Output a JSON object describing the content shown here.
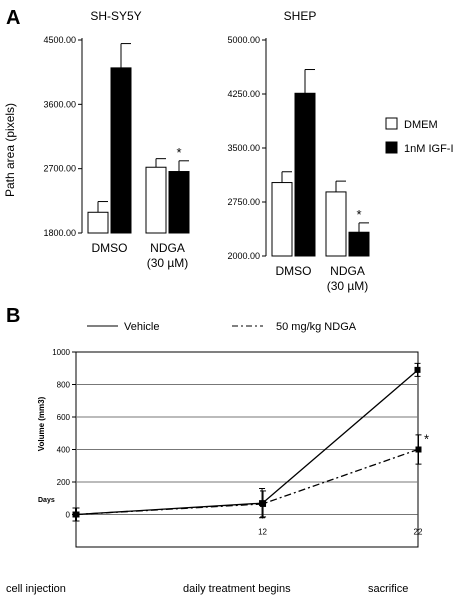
{
  "panel_a": {
    "letter": "A",
    "ylabel": "Path area (pixels)",
    "legend": [
      "DMEM",
      "1nM IGF-I"
    ]
  },
  "panel_b": {
    "letter": "B",
    "legend": [
      "Vehicle",
      "50 mg/kg NDGA"
    ],
    "ylabel": "Volume (mm3)",
    "days_label": "Days",
    "timeline": [
      "cell injection",
      "daily treatment begins",
      "sacrifice"
    ]
  },
  "colors": {
    "dmem": "#ffffff",
    "igf": "#000000",
    "stroke": "#000000"
  },
  "chart_data": [
    {
      "type": "bar",
      "title": "SH-SY5Y",
      "ylabel": "Path area (pixels)",
      "categories": [
        "DMSO",
        "NDGA (30 µM)"
      ],
      "category_labels": [
        [
          "DMSO"
        ],
        [
          "NDGA",
          "(30 µM)"
        ]
      ],
      "ylim": [
        1800,
        4500
      ],
      "yticks": [
        1800,
        2700,
        3600,
        4500
      ],
      "ytick_labels": [
        "1800.00",
        "2700.00",
        "3600.00",
        "4500.00"
      ],
      "series": [
        {
          "name": "DMEM",
          "values": [
            2090,
            2720
          ],
          "errors": [
            150,
            120
          ]
        },
        {
          "name": "1nM IGF-I",
          "values": [
            4110,
            2660
          ],
          "errors": [
            340,
            150
          ]
        }
      ],
      "annotations": [
        {
          "text": "*",
          "category": 1,
          "series": 1
        }
      ]
    },
    {
      "type": "bar",
      "title": "SHEP",
      "categories": [
        "DMSO",
        "NDGA (30 µM)"
      ],
      "category_labels": [
        [
          "DMSO"
        ],
        [
          "NDGA",
          "(30 µM)"
        ]
      ],
      "ylim": [
        2000,
        5000
      ],
      "yticks": [
        2000,
        2750,
        3500,
        4250,
        5000
      ],
      "ytick_labels": [
        "2000.00",
        "2750.00",
        "3500.00",
        "4250.00",
        "5000.00"
      ],
      "series": [
        {
          "name": "DMEM",
          "values": [
            3020,
            2890
          ],
          "errors": [
            150,
            150
          ]
        },
        {
          "name": "1nM IGF-I",
          "values": [
            4260,
            2330
          ],
          "errors": [
            330,
            130
          ]
        }
      ],
      "annotations": [
        {
          "text": "*",
          "category": 1,
          "series": 1
        }
      ]
    },
    {
      "type": "line",
      "ylabel": "Volume (mm3)",
      "x": [
        0,
        12,
        22
      ],
      "xticks": [
        12,
        22
      ],
      "xlim": [
        0,
        22
      ],
      "ylim": [
        -200,
        1000
      ],
      "yticks": [
        0,
        200,
        400,
        600,
        800,
        1000
      ],
      "ytick_labels": [
        "0",
        "200",
        "400",
        "600",
        "800",
        "1000"
      ],
      "grid": true,
      "series": [
        {
          "name": "Vehicle",
          "values": [
            0,
            70,
            890
          ],
          "errors": [
            40,
            90,
            40
          ],
          "style": "solid"
        },
        {
          "name": "50 mg/kg NDGA",
          "values": [
            0,
            65,
            400
          ],
          "errors": [
            40,
            80,
            90
          ],
          "style": "dash-dot"
        }
      ],
      "annotations": [
        {
          "text": "*",
          "x": 22,
          "series": 1
        }
      ]
    }
  ]
}
